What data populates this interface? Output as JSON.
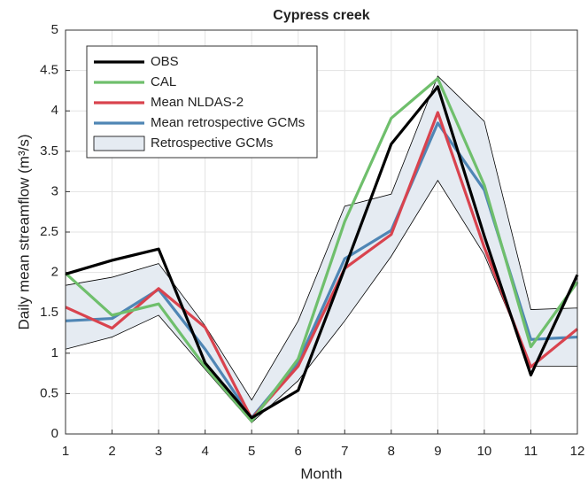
{
  "chart_data": {
    "type": "line",
    "title": "Cypress creek",
    "xlabel": "Month",
    "ylabel": "Daily mean streamflow (m³/s)",
    "x": [
      1,
      2,
      3,
      4,
      5,
      6,
      7,
      8,
      9,
      10,
      11,
      12
    ],
    "xlim": [
      1,
      12
    ],
    "xticks": [
      1,
      2,
      3,
      4,
      5,
      6,
      7,
      8,
      9,
      10,
      11,
      12
    ],
    "ylim": [
      0,
      5
    ],
    "yticks": [
      0,
      0.5,
      1,
      1.5,
      2,
      2.5,
      3,
      3.5,
      4,
      4.5,
      5
    ],
    "grid": true,
    "legend": "northwest",
    "series": [
      {
        "name": "OBS",
        "color": "#000000",
        "values": [
          1.98,
          2.15,
          2.29,
          0.88,
          0.2,
          0.54,
          2.05,
          3.59,
          4.3,
          2.45,
          0.73,
          1.97
        ]
      },
      {
        "name": "CAL",
        "color": "#6fbf6c",
        "values": [
          1.99,
          1.47,
          1.61,
          0.83,
          0.16,
          0.93,
          2.63,
          3.91,
          4.4,
          3.08,
          1.08,
          1.88
        ]
      },
      {
        "name": "Mean NLDAS-2",
        "color": "#d9434e",
        "values": [
          1.57,
          1.31,
          1.8,
          1.32,
          0.19,
          0.84,
          2.05,
          2.47,
          3.98,
          2.31,
          0.83,
          1.3
        ]
      },
      {
        "name": "Mean retrospective GCMs",
        "color": "#4f86b5",
        "values": [
          1.4,
          1.43,
          1.79,
          1.05,
          0.2,
          0.89,
          2.17,
          2.52,
          3.85,
          3.02,
          1.17,
          1.2
        ]
      }
    ],
    "band": {
      "name": "Retrospective GCMs",
      "color": "#e5ebf2",
      "upper": [
        1.84,
        1.94,
        2.11,
        1.34,
        0.42,
        1.4,
        2.82,
        2.97,
        4.43,
        3.87,
        1.54,
        1.56
      ],
      "lower": [
        1.05,
        1.2,
        1.47,
        0.8,
        0.14,
        0.66,
        1.4,
        2.2,
        3.14,
        2.22,
        0.84,
        0.84
      ]
    }
  }
}
